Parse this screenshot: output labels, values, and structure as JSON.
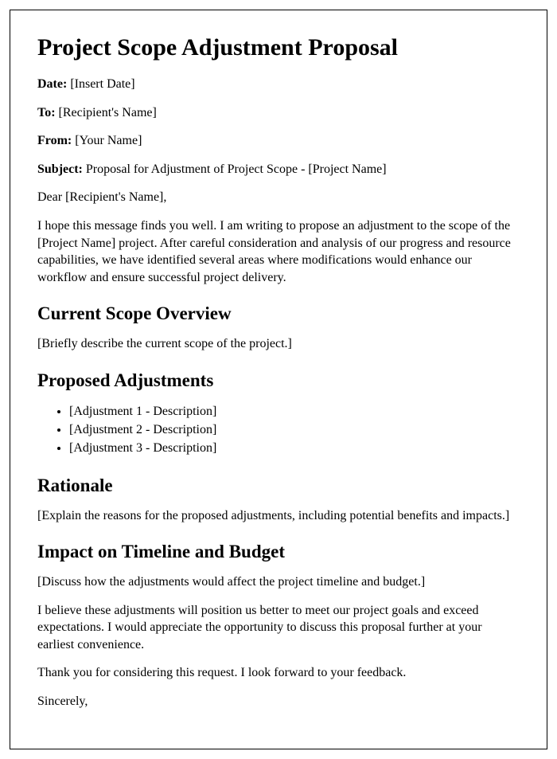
{
  "title": "Project Scope Adjustment Proposal",
  "meta": {
    "date_label": "Date:",
    "date_value": " [Insert Date]",
    "to_label": "To:",
    "to_value": " [Recipient's Name]",
    "from_label": "From:",
    "from_value": " [Your Name]",
    "subject_label": "Subject:",
    "subject_value": " Proposal for Adjustment of Project Scope - [Project Name]"
  },
  "salutation": "Dear [Recipient's Name],",
  "intro": "I hope this message finds you well. I am writing to propose an adjustment to the scope of the [Project Name] project. After careful consideration and analysis of our progress and resource capabilities, we have identified several areas where modifications would enhance our workflow and ensure successful project delivery.",
  "sections": {
    "overview_heading": "Current Scope Overview",
    "overview_body": "[Briefly describe the current scope of the project.]",
    "adjustments_heading": "Proposed Adjustments",
    "adjustments": [
      "[Adjustment 1 - Description]",
      "[Adjustment 2 - Description]",
      "[Adjustment 3 - Description]"
    ],
    "rationale_heading": "Rationale",
    "rationale_body": "[Explain the reasons for the proposed adjustments, including potential benefits and impacts.]",
    "impact_heading": "Impact on Timeline and Budget",
    "impact_body": "[Discuss how the adjustments would affect the project timeline and budget.]"
  },
  "closing1": "I believe these adjustments will position us better to meet our project goals and exceed expectations. I would appreciate the opportunity to discuss this proposal further at your earliest convenience.",
  "closing2": "Thank you for considering this request. I look forward to your feedback.",
  "signoff": "Sincerely,"
}
